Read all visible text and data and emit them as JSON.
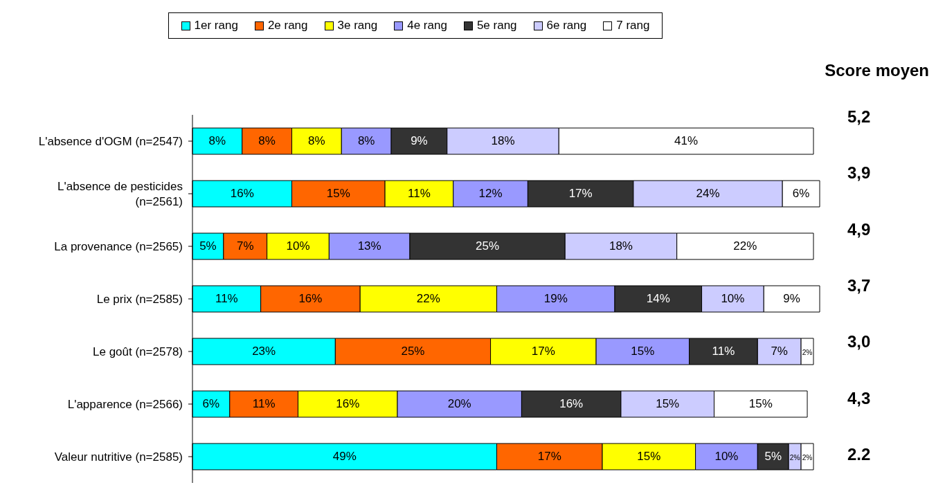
{
  "chart_data": {
    "type": "bar",
    "orientation": "horizontal",
    "stacked": true,
    "legend": "top",
    "grid": false,
    "categories": [
      "L'absence d'OGM (n=2547)",
      "L'absence de pesticides (n=2561)",
      "La provenance (n=2565)",
      "Le prix (n=2585)",
      "Le goût (n=2578)",
      "L'apparence (n=2566)",
      "Valeur nutritive (n=2585)"
    ],
    "series": [
      {
        "name": "1er rang",
        "color": "#00ffff",
        "values": [
          8,
          16,
          5,
          11,
          23,
          6,
          49
        ],
        "value_labels": [
          "8%",
          "16%",
          "5%",
          "11%",
          "23%",
          "6%",
          "49%"
        ]
      },
      {
        "name": "2e rang",
        "color": "#ff6600",
        "values": [
          8,
          15,
          7,
          16,
          25,
          11,
          17
        ],
        "value_labels": [
          "8%",
          "15%",
          "7%",
          "16%",
          "25%",
          "11%",
          "17%"
        ]
      },
      {
        "name": "3e rang",
        "color": "#ffff00",
        "values": [
          8,
          11,
          10,
          22,
          17,
          16,
          15
        ],
        "value_labels": [
          "8%",
          "11%",
          "10%",
          "22%",
          "17%",
          "16%",
          "15%"
        ]
      },
      {
        "name": "4e rang",
        "color": "#9999ff",
        "values": [
          8,
          12,
          13,
          19,
          15,
          20,
          10
        ],
        "value_labels": [
          "8%",
          "12%",
          "13%",
          "19%",
          "15%",
          "20%",
          "10%"
        ]
      },
      {
        "name": "5e rang",
        "color": "#333333",
        "values": [
          9,
          17,
          25,
          14,
          11,
          16,
          5
        ],
        "value_labels": [
          "9%",
          "17%",
          "25%",
          "14%",
          "11%",
          "16%",
          "5%"
        ]
      },
      {
        "name": "6e rang",
        "color": "#ccccff",
        "values": [
          18,
          24,
          18,
          10,
          7,
          15,
          2
        ],
        "value_labels": [
          "18%",
          "24%",
          "18%",
          "10%",
          "7%",
          "15%",
          "2%"
        ]
      },
      {
        "name": "7 rang",
        "color": "#ffffff",
        "values": [
          41,
          6,
          22,
          9,
          2,
          15,
          2
        ],
        "value_labels": [
          "41%",
          "6%",
          "22%",
          "9%",
          "2%",
          "15%",
          "2%"
        ]
      }
    ],
    "annotations": [
      "Score moyen",
      "5,2",
      "3,9",
      "4,9",
      "3,7",
      "3,0",
      "4,3",
      "2.2"
    ]
  }
}
